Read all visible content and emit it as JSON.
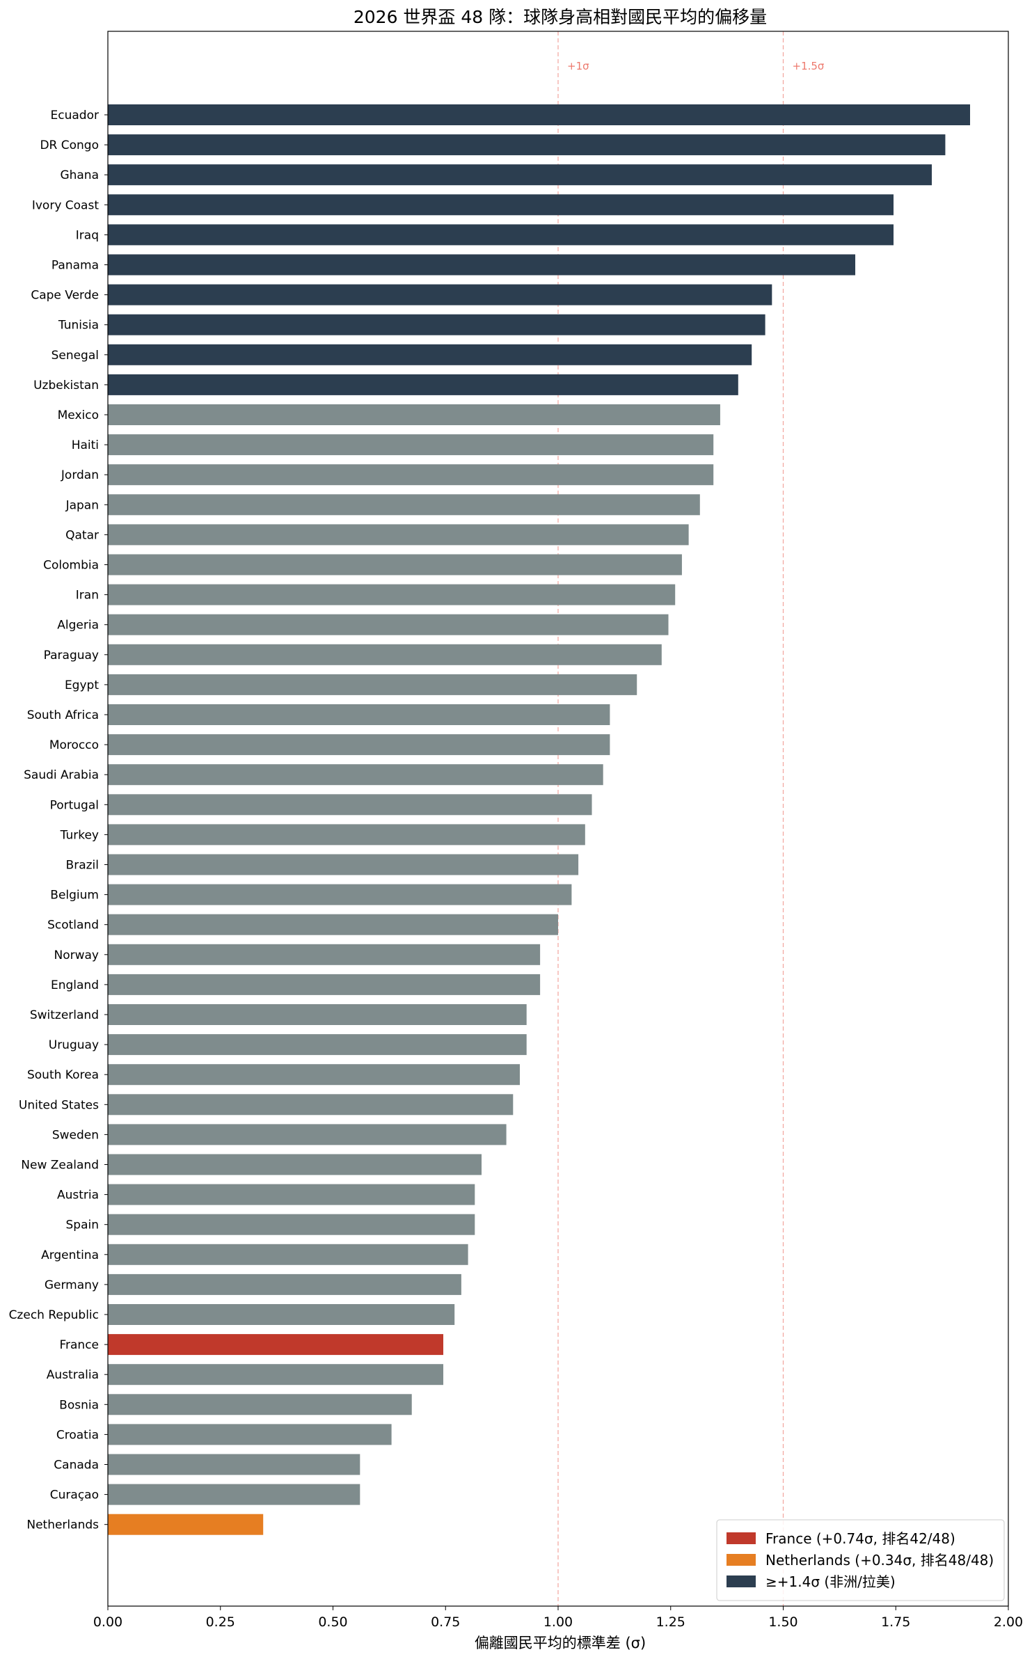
{
  "chart_data": {
    "type": "bar",
    "orientation": "horizontal",
    "title": "2026 世界盃 48 隊：球隊身高相對國民平均的偏移量",
    "xlabel": "偏離國民平均的標準差 (σ)",
    "ylabel": "",
    "xlim": [
      0,
      2.0
    ],
    "xticks": [
      "0.00",
      "0.25",
      "0.50",
      "0.75",
      "1.00",
      "1.25",
      "1.50",
      "1.75",
      "2.00"
    ],
    "grid": false,
    "legend_position": "bottom-right",
    "categories": [
      "Ecuador",
      "DR Congo",
      "Ghana",
      "Ivory Coast",
      "Iraq",
      "Panama",
      "Cape Verde",
      "Tunisia",
      "Senegal",
      "Uzbekistan",
      "Mexico",
      "Haiti",
      "Jordan",
      "Japan",
      "Qatar",
      "Colombia",
      "Iran",
      "Algeria",
      "Paraguay",
      "Egypt",
      "South Africa",
      "Morocco",
      "Saudi Arabia",
      "Portugal",
      "Turkey",
      "Brazil",
      "Belgium",
      "Scotland",
      "Norway",
      "England",
      "Switzerland",
      "Uruguay",
      "South Korea",
      "United States",
      "Sweden",
      "New Zealand",
      "Austria",
      "Spain",
      "Argentina",
      "Germany",
      "Czech Republic",
      "France",
      "Australia",
      "Bosnia",
      "Croatia",
      "Canada",
      "Curaçao",
      "Netherlands"
    ],
    "values": [
      1.915,
      1.86,
      1.83,
      1.745,
      1.745,
      1.66,
      1.475,
      1.46,
      1.43,
      1.4,
      1.36,
      1.345,
      1.345,
      1.315,
      1.29,
      1.275,
      1.26,
      1.245,
      1.23,
      1.175,
      1.115,
      1.115,
      1.1,
      1.075,
      1.06,
      1.045,
      1.03,
      1.0,
      0.96,
      0.96,
      0.93,
      0.93,
      0.915,
      0.9,
      0.885,
      0.83,
      0.815,
      0.815,
      0.8,
      0.785,
      0.77,
      0.745,
      0.745,
      0.675,
      0.63,
      0.56,
      0.56,
      0.345
    ],
    "bar_groups": [
      "top",
      "top",
      "top",
      "top",
      "top",
      "top",
      "top",
      "top",
      "top",
      "top",
      "other",
      "other",
      "other",
      "other",
      "other",
      "other",
      "other",
      "other",
      "other",
      "other",
      "other",
      "other",
      "other",
      "other",
      "other",
      "other",
      "other",
      "other",
      "other",
      "other",
      "other",
      "other",
      "other",
      "other",
      "other",
      "other",
      "other",
      "other",
      "other",
      "other",
      "other",
      "france",
      "other",
      "other",
      "other",
      "other",
      "other",
      "netherlands"
    ],
    "colors": {
      "top": "#2c3e50",
      "other": "#7f8c8d",
      "france": "#c0392b",
      "netherlands": "#e67e22",
      "reference_line": "#e74c3c"
    },
    "reference_lines": [
      {
        "x": 1.0,
        "label": "+1σ"
      },
      {
        "x": 1.5,
        "label": "+1.5σ"
      }
    ],
    "legend": [
      {
        "label": "France (+0.74σ, 排名42/48)",
        "group": "france"
      },
      {
        "label": "Netherlands (+0.34σ, 排名48/48)",
        "group": "netherlands"
      },
      {
        "label": "≥+1.4σ (非洲/拉美)",
        "group": "top"
      }
    ]
  }
}
